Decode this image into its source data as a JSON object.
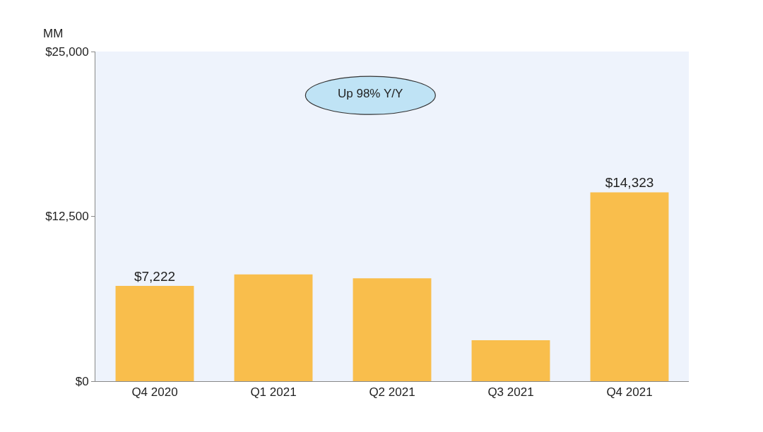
{
  "chart_data": {
    "type": "bar",
    "ylabel": "MM",
    "categories": [
      "Q4 2020",
      "Q1 2021",
      "Q2 2021",
      "Q3 2021",
      "Q4 2021"
    ],
    "values": [
      7222,
      8100,
      7800,
      3100,
      14323
    ],
    "value_labels": [
      "$7,222",
      null,
      null,
      null,
      "$14,323"
    ],
    "color": "#f9be4c",
    "ylim": [
      0,
      25000
    ],
    "yticks": [
      {
        "value": 0,
        "label": "$0"
      },
      {
        "value": 12500,
        "label": "$12,500"
      },
      {
        "value": 25000,
        "label": "$25,000"
      }
    ],
    "annotations": [
      "Up 98% Y/Y"
    ]
  }
}
